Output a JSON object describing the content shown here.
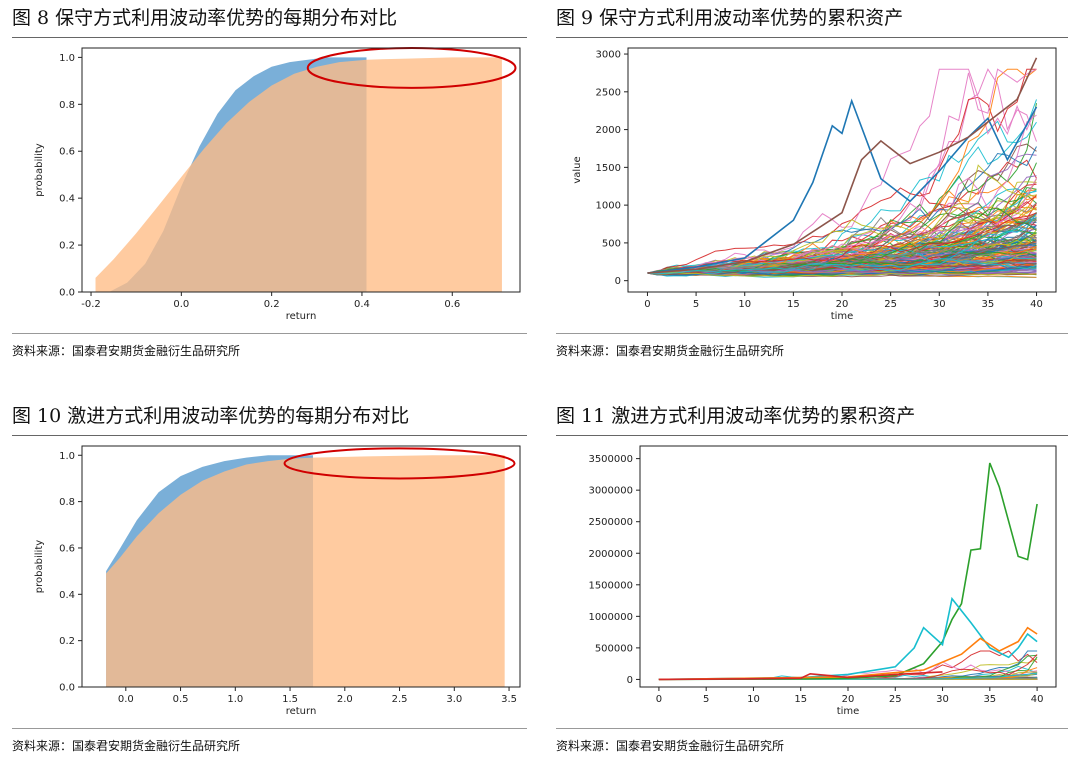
{
  "source_text": "资料来源：国泰君安期货金融衍生品研究所",
  "colors": {
    "blue": "#7aafd8",
    "orange": "#ffbc85",
    "overlap": "#c49a74",
    "ellipse": "#d00000"
  },
  "chart_data": [
    {
      "id": "fig8",
      "type": "area",
      "title": "图 8 保守方式利用波动率优势的每期分布对比",
      "xlabel": "return",
      "ylabel": "probability",
      "xlim": [
        -0.22,
        0.75
      ],
      "ylim": [
        0,
        1.04
      ],
      "xticks": [
        -0.2,
        0.0,
        0.2,
        0.4,
        0.6
      ],
      "xtick_labels": [
        "-0.2",
        "0.0",
        "0.2",
        "0.4",
        "0.6"
      ],
      "yticks": [
        0.0,
        0.2,
        0.4,
        0.6,
        0.8,
        1.0
      ],
      "ytick_labels": [
        "0.0",
        "0.2",
        "0.4",
        "0.6",
        "0.8",
        "1.0"
      ],
      "series": [
        {
          "name": "blue",
          "x": [
            -0.16,
            -0.12,
            -0.08,
            -0.04,
            0.0,
            0.04,
            0.08,
            0.12,
            0.16,
            0.2,
            0.24,
            0.28,
            0.32,
            0.36,
            0.41
          ],
          "y": [
            0.0,
            0.04,
            0.12,
            0.26,
            0.45,
            0.62,
            0.76,
            0.86,
            0.92,
            0.96,
            0.98,
            0.99,
            1.0,
            1.0,
            1.0
          ]
        },
        {
          "name": "orange",
          "x": [
            -0.19,
            -0.15,
            -0.1,
            -0.05,
            0.0,
            0.05,
            0.1,
            0.15,
            0.2,
            0.25,
            0.3,
            0.35,
            0.41,
            0.5,
            0.6,
            0.71
          ],
          "y": [
            0.06,
            0.14,
            0.25,
            0.37,
            0.49,
            0.61,
            0.72,
            0.81,
            0.88,
            0.93,
            0.96,
            0.98,
            0.99,
            0.995,
            1.0,
            1.0
          ]
        }
      ],
      "annotation": {
        "shape": "ellipse",
        "x": [
          0.28,
          0.74
        ],
        "y": [
          0.87,
          1.04
        ]
      }
    },
    {
      "id": "fig9",
      "type": "line",
      "title": "图 9 保守方式利用波动率优势的累积资产",
      "xlabel": "time",
      "ylabel": "value",
      "xlim": [
        -2,
        42
      ],
      "ylim": [
        -150,
        3080
      ],
      "xticks": [
        0,
        5,
        10,
        15,
        20,
        25,
        30,
        35,
        40
      ],
      "xtick_labels": [
        "0",
        "5",
        "10",
        "15",
        "20",
        "25",
        "30",
        "35",
        "40"
      ],
      "yticks": [
        0,
        500,
        1000,
        1500,
        2000,
        2500,
        3000
      ],
      "ytick_labels": [
        "0",
        "500",
        "1000",
        "1500",
        "2000",
        "2500",
        "3000"
      ],
      "n_paths": 180,
      "start": 100,
      "highlight_series": [
        {
          "name": "blue-peak",
          "x": [
            0,
            5,
            10,
            15,
            17,
            19,
            20,
            21,
            24,
            27,
            30,
            33,
            35,
            37,
            40
          ],
          "y": [
            100,
            180,
            300,
            800,
            1300,
            2050,
            1950,
            2380,
            1350,
            1050,
            1450,
            1900,
            2150,
            1600,
            2300
          ]
        },
        {
          "name": "brown-top",
          "x": [
            0,
            5,
            10,
            15,
            20,
            22,
            24,
            27,
            30,
            33,
            35,
            38,
            40
          ],
          "y": [
            100,
            150,
            250,
            480,
            900,
            1600,
            1850,
            1550,
            1700,
            1900,
            2100,
            2400,
            2950
          ]
        }
      ]
    },
    {
      "id": "fig10",
      "type": "area",
      "title": "图 10 激进方式利用波动率优势的每期分布对比",
      "xlabel": "return",
      "ylabel": "probability",
      "xlim": [
        -0.4,
        3.6
      ],
      "ylim": [
        0,
        1.04
      ],
      "xticks": [
        0.0,
        0.5,
        1.0,
        1.5,
        2.0,
        2.5,
        3.0,
        3.5
      ],
      "xtick_labels": [
        "0.0",
        "0.5",
        "1.0",
        "1.5",
        "2.0",
        "2.5",
        "3.0",
        "3.5"
      ],
      "yticks": [
        0.0,
        0.2,
        0.4,
        0.6,
        0.8,
        1.0
      ],
      "ytick_labels": [
        "0.0",
        "0.2",
        "0.4",
        "0.6",
        "0.8",
        "1.0"
      ],
      "series": [
        {
          "name": "blue",
          "x": [
            -0.18,
            -0.05,
            0.1,
            0.3,
            0.5,
            0.7,
            0.9,
            1.1,
            1.3,
            1.5,
            1.71
          ],
          "y": [
            0.5,
            0.6,
            0.72,
            0.84,
            0.91,
            0.95,
            0.975,
            0.99,
            1.0,
            1.0,
            1.0
          ]
        },
        {
          "name": "orange",
          "x": [
            -0.18,
            -0.05,
            0.1,
            0.3,
            0.5,
            0.7,
            0.9,
            1.1,
            1.3,
            1.5,
            1.71,
            2.2,
            2.8,
            3.46
          ],
          "y": [
            0.49,
            0.56,
            0.65,
            0.75,
            0.83,
            0.89,
            0.93,
            0.96,
            0.975,
            0.985,
            0.99,
            0.995,
            1.0,
            1.0
          ]
        }
      ],
      "annotation": {
        "shape": "ellipse",
        "x": [
          1.45,
          3.55
        ],
        "y": [
          0.9,
          1.03
        ]
      }
    },
    {
      "id": "fig11",
      "type": "line",
      "title": "图 11 激进方式利用波动率优势的累积资产",
      "xlabel": "time",
      "ylabel": "",
      "xlim": [
        -2,
        42
      ],
      "ylim": [
        -120000,
        3700000
      ],
      "xticks": [
        0,
        5,
        10,
        15,
        20,
        25,
        30,
        35,
        40
      ],
      "xtick_labels": [
        "0",
        "5",
        "10",
        "15",
        "20",
        "25",
        "30",
        "35",
        "40"
      ],
      "yticks": [
        0,
        500000,
        1000000,
        1500000,
        2000000,
        2500000,
        3000000,
        3500000
      ],
      "ytick_labels": [
        "0",
        "500000",
        "1000000",
        "1500000",
        "2000000",
        "2500000",
        "3000000",
        "3500000"
      ],
      "n_paths": 80,
      "start": 100,
      "highlight_series": [
        {
          "name": "green-peak",
          "x": [
            0,
            10,
            20,
            25,
            28,
            30,
            31,
            32,
            33,
            34,
            35,
            36,
            38,
            39,
            40
          ],
          "y": [
            0,
            5000,
            20000,
            60000,
            250000,
            600000,
            950000,
            1200000,
            2050000,
            2070000,
            3430000,
            3050000,
            1950000,
            1900000,
            2780000
          ]
        },
        {
          "name": "cyan-peak",
          "x": [
            0,
            15,
            20,
            25,
            27,
            28,
            30,
            31,
            33,
            35,
            37,
            38,
            39,
            40
          ],
          "y": [
            0,
            30000,
            80000,
            200000,
            500000,
            820000,
            550000,
            1280000,
            900000,
            500000,
            350000,
            500000,
            720000,
            600000
          ]
        },
        {
          "name": "orange-rise",
          "x": [
            0,
            20,
            28,
            32,
            34,
            36,
            38,
            39,
            40
          ],
          "y": [
            0,
            40000,
            150000,
            400000,
            650000,
            450000,
            600000,
            820000,
            720000
          ]
        },
        {
          "name": "red-bump",
          "x": [
            0,
            10,
            15,
            16,
            18,
            20,
            25,
            30
          ],
          "y": [
            0,
            10000,
            20000,
            90000,
            60000,
            30000,
            80000,
            120000
          ]
        }
      ]
    }
  ]
}
